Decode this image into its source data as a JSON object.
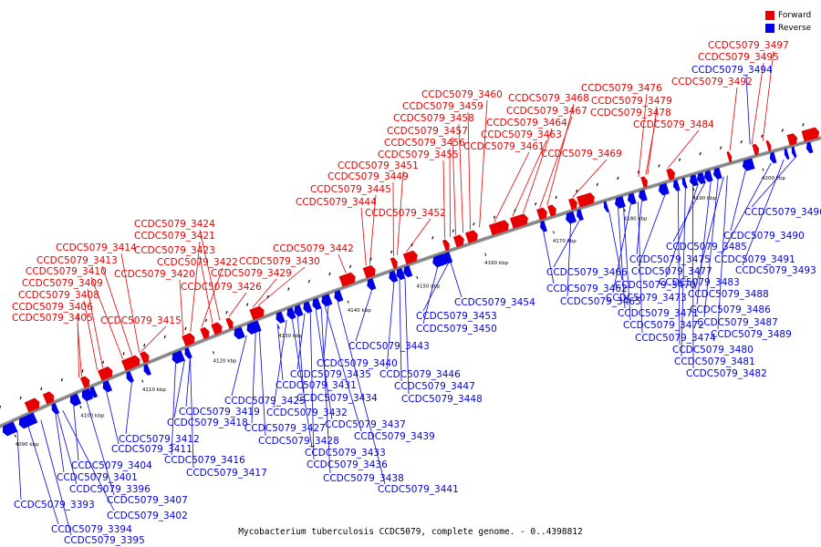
{
  "legend": {
    "forward": "Forward",
    "reverse": "Reverse"
  },
  "colors": {
    "forward": "#e60000",
    "reverse": "#0000e6",
    "backbone": "#999999"
  },
  "caption": "Mycobacterium tuberculosis CCDC5079, complete genome. - 0..4398812",
  "ticks": [
    "4090 kbp",
    "4100 kbp",
    "4110 kbp",
    "4120 kbp",
    "4130 kbp",
    "4140 kbp",
    "4150 kbp",
    "4160 kbp",
    "4170 kbp",
    "4180 kbp",
    "4190 kbp",
    "4200 kbp"
  ],
  "forward_genes": [
    "CCDC5079_3405",
    "CCDC5079_3406",
    "CCDC5079_3408",
    "CCDC5079_3409",
    "CCDC5079_3410",
    "CCDC5079_3413",
    "CCDC5079_3414",
    "CCDC5079_3415",
    "CCDC5079_3420",
    "CCDC5079_3421",
    "CCDC5079_3422",
    "CCDC5079_3423",
    "CCDC5079_3424",
    "CCDC5079_3426",
    "CCDC5079_3429",
    "CCDC5079_3430",
    "CCDC5079_3442",
    "CCDC5079_3444",
    "CCDC5079_3445",
    "CCDC5079_3449",
    "CCDC5079_3451",
    "CCDC5079_3452",
    "CCDC5079_3455",
    "CCDC5079_3456",
    "CCDC5079_3457",
    "CCDC5079_3458",
    "CCDC5079_3459",
    "CCDC5079_3460",
    "CCDC5079_3461",
    "CCDC5079_3463",
    "CCDC5079_3464",
    "CCDC5079_3467",
    "CCDC5079_3468",
    "CCDC5079_3469",
    "CCDC5079_3476",
    "CCDC5079_3478",
    "CCDC5079_3479",
    "CCDC5079_3484",
    "CCDC5079_3492",
    "CCDC5079_3495",
    "CCDC5079_3497"
  ],
  "reverse_genes": [
    "CCDC5079_3393",
    "CCDC5079_3394",
    "CCDC5079_3395",
    "CCDC5079_3396",
    "CCDC5079_3401",
    "CCDC5079_3402",
    "CCDC5079_3404",
    "CCDC5079_3407",
    "CCDC5079_3411",
    "CCDC5079_3412",
    "CCDC5079_3416",
    "CCDC5079_3417",
    "CCDC5079_3418",
    "CCDC5079_3419",
    "CCDC5079_3425",
    "CCDC5079_3427",
    "CCDC5079_3428",
    "CCDC5079_3431",
    "CCDC5079_3432",
    "CCDC5079_3433",
    "CCDC5079_3434",
    "CCDC5079_3435",
    "CCDC5079_3436",
    "CCDC5079_3437",
    "CCDC5079_3438",
    "CCDC5079_3439",
    "CCDC5079_3440",
    "CCDC5079_3441",
    "CCDC5079_3443",
    "CCDC5079_3446",
    "CCDC5079_3447",
    "CCDC5079_3448",
    "CCDC5079_3450",
    "CCDC5079_3453",
    "CCDC5079_3454",
    "CCDC5079_3462",
    "CCDC5079_3465",
    "CCDC5079_3466",
    "CCDC5079_3470",
    "CCDC5079_3471",
    "CCDC5079_3472",
    "CCDC5079_3473",
    "CCDC5079_3474",
    "CCDC5079_3475",
    "CCDC5079_3477",
    "CCDC5079_3480",
    "CCDC5079_3481",
    "CCDC5079_3482",
    "CCDC5079_3483",
    "CCDC5079_3485",
    "CCDC5079_3486",
    "CCDC5079_3487",
    "CCDC5079_3488",
    "CCDC5079_3489",
    "CCDC5079_3490",
    "CCDC5079_3491",
    "CCDC5079_3493",
    "CCDC5079_3494",
    "CCDC5079_3496"
  ]
}
